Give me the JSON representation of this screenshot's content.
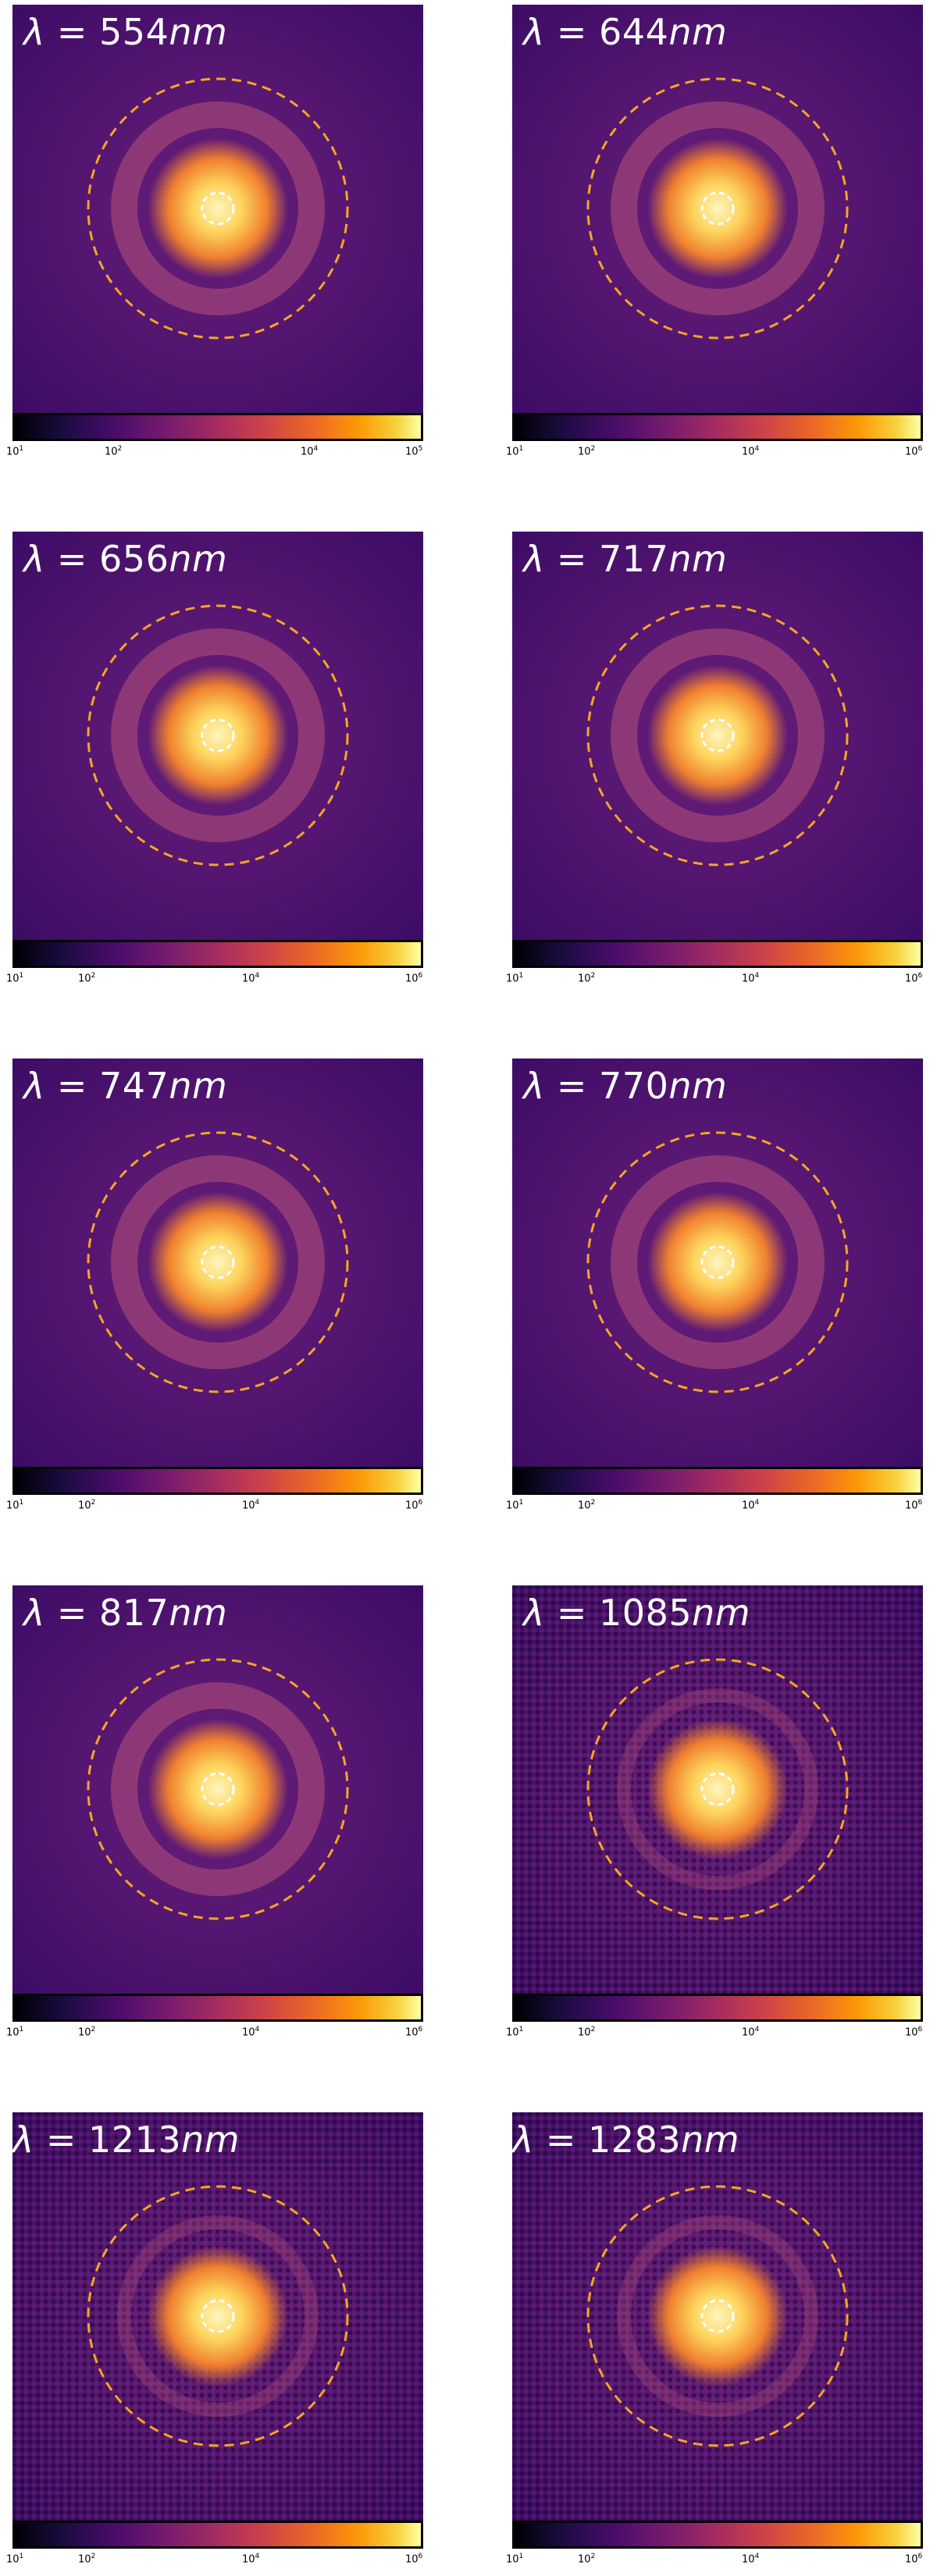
{
  "panels": [
    {
      "symbol": "λ",
      "eq": " = ",
      "value": "554",
      "unit": "nm",
      "ticks": {
        "t0": "10",
        "e0": "1",
        "t1": "10",
        "e1": "2",
        "t2": "10",
        "e2": "4",
        "t3": "10",
        "e3": "5"
      }
    },
    {
      "symbol": "λ",
      "eq": " = ",
      "value": "644",
      "unit": "nm",
      "ticks": {
        "t0": "10",
        "e0": "1",
        "t1": "10",
        "e1": "2",
        "t2": "10",
        "e2": "4",
        "t3": "10",
        "e3": "6"
      }
    },
    {
      "symbol": "λ",
      "eq": " = ",
      "value": "656",
      "unit": "nm",
      "ticks": {
        "t0": "10",
        "e0": "1",
        "t1": "10",
        "e1": "2",
        "t2": "10",
        "e2": "4",
        "t3": "10",
        "e3": "6"
      }
    },
    {
      "symbol": "λ",
      "eq": " = ",
      "value": "717",
      "unit": "nm",
      "ticks": {
        "t0": "10",
        "e0": "1",
        "t1": "10",
        "e1": "2",
        "t2": "10",
        "e2": "4",
        "t3": "10",
        "e3": "6"
      }
    },
    {
      "symbol": "λ",
      "eq": " = ",
      "value": "747",
      "unit": "nm",
      "ticks": {
        "t0": "10",
        "e0": "1",
        "t1": "10",
        "e1": "2",
        "t2": "10",
        "e2": "4",
        "t3": "10",
        "e3": "6"
      }
    },
    {
      "symbol": "λ",
      "eq": " = ",
      "value": "770",
      "unit": "nm",
      "ticks": {
        "t0": "10",
        "e0": "1",
        "t1": "10",
        "e1": "2",
        "t2": "10",
        "e2": "4",
        "t3": "10",
        "e3": "6"
      }
    },
    {
      "symbol": "λ",
      "eq": " = ",
      "value": "817",
      "unit": "nm",
      "ticks": {
        "t0": "10",
        "e0": "1",
        "t1": "10",
        "e1": "2",
        "t2": "10",
        "e2": "4",
        "t3": "10",
        "e3": "6"
      }
    },
    {
      "symbol": "λ",
      "eq": " = ",
      "value": "1085",
      "unit": "nm",
      "ticks": {
        "t0": "10",
        "e0": "1",
        "t1": "10",
        "e1": "2",
        "t2": "10",
        "e2": "4",
        "t3": "10",
        "e3": "6"
      }
    },
    {
      "symbol": "λ",
      "eq": " = ",
      "value": "1213",
      "unit": "nm",
      "ticks": {
        "t0": "10",
        "e0": "1",
        "t1": "10",
        "e1": "2",
        "t2": "10",
        "e2": "4",
        "t3": "10",
        "e3": "6"
      }
    },
    {
      "symbol": "λ",
      "eq": " = ",
      "value": "1283",
      "unit": "nm",
      "ticks": {
        "t0": "10",
        "e0": "1",
        "t1": "10",
        "e1": "2",
        "t2": "10",
        "e2": "4",
        "t3": "10",
        "e3": "6"
      }
    }
  ],
  "colors": {
    "background_outer": "#3d0c66",
    "background_mid": "#6a1f7a",
    "ring": "#c0557a",
    "core": "#fff6c0",
    "dashed_outer": "#f5a623",
    "dashed_inner": "#ffffff",
    "colorbar_frame": "#000000"
  },
  "colormap": "inferno"
}
